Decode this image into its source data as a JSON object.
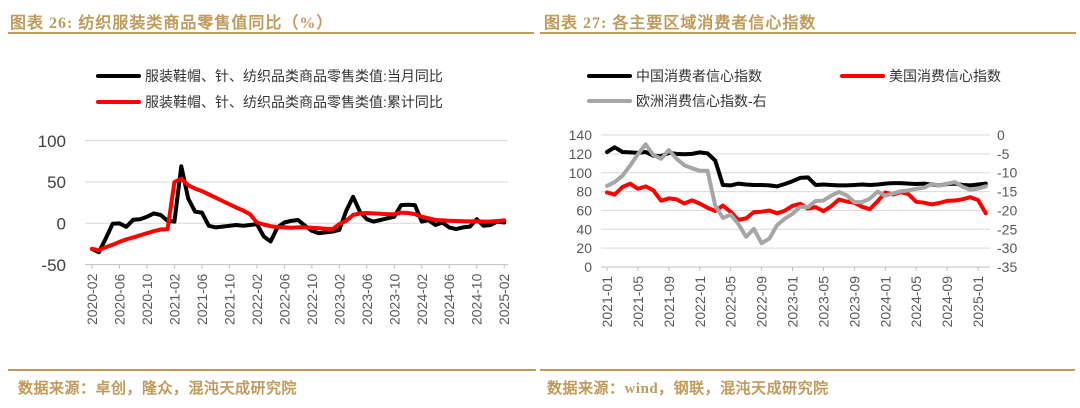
{
  "page": {
    "accent": "#BF9B5C",
    "background": "#FFFFFF"
  },
  "figures": [
    {
      "title": "图表 26: 纺织服装类商品零售值同比（%）",
      "source": "数据来源：卓创，隆众，混沌天成研究院",
      "legend": [
        {
          "label": "服装鞋帽、针、纺织品类商品零售类值:当月同比",
          "color": "#000000"
        },
        {
          "label": "服装鞋帽、针、纺织品类商品零售类值:累计同比",
          "color": "#FF0000"
        }
      ]
    },
    {
      "title": "图表 27: 各主要区域消费者信心指数",
      "source": "数据来源：wind，钢联，混沌天成研究院",
      "legend": [
        {
          "label": "中国消费者信心指数",
          "color": "#000000"
        },
        {
          "label": "美国消费信心指数",
          "color": "#FF0000"
        },
        {
          "label": "欧洲消费信心指数-右",
          "color": "#A6A6A6"
        }
      ]
    }
  ],
  "chart_data": [
    {
      "type": "line",
      "title": "纺织服装类商品零售值同比（%）",
      "xlabel": "",
      "ylabel": "",
      "grid": true,
      "legend_position": "top",
      "ylim_left": [
        -50,
        100
      ],
      "yticks_left": [
        100,
        50,
        0,
        -50
      ],
      "x_tick_every": 4,
      "x": [
        "2020-02",
        "2020-03",
        "2020-04",
        "2020-05",
        "2020-06",
        "2020-07",
        "2020-08",
        "2020-09",
        "2020-10",
        "2020-11",
        "2020-12",
        "2021-01",
        "2021-02",
        "2021-03",
        "2021-04",
        "2021-05",
        "2021-06",
        "2021-07",
        "2021-08",
        "2021-09",
        "2021-10",
        "2021-11",
        "2021-12",
        "2022-01",
        "2022-02",
        "2022-03",
        "2022-04",
        "2022-05",
        "2022-06",
        "2022-07",
        "2022-08",
        "2022-09",
        "2022-10",
        "2022-11",
        "2022-12",
        "2023-01",
        "2023-02",
        "2023-03",
        "2023-04",
        "2023-05",
        "2023-06",
        "2023-07",
        "2023-08",
        "2023-09",
        "2023-10",
        "2023-11",
        "2023-12",
        "2024-01",
        "2024-02",
        "2024-03",
        "2024-04",
        "2024-05",
        "2024-06",
        "2024-07",
        "2024-08",
        "2024-09",
        "2024-10",
        "2024-11",
        "2024-12",
        "2025-01",
        "2025-02"
      ],
      "series": [
        {
          "name": "服装鞋帽、针、纺织品类商品零售类值:当月同比",
          "axis": "left",
          "color": "#000000",
          "values": [
            -31,
            -35,
            -18.5,
            -0.6,
            -0.1,
            -4.2,
            4.2,
            5,
            8,
            12,
            10,
            3,
            2,
            69,
            30,
            14,
            13,
            -3,
            -5,
            -4,
            -3,
            -2,
            -3,
            -2,
            -1,
            -16,
            -22,
            -5,
            1,
            3,
            4,
            -3,
            -9,
            -12,
            -11,
            -10,
            -8,
            15,
            32,
            14,
            5,
            2,
            4,
            6,
            8,
            22,
            22.5,
            22,
            2,
            3.8,
            -2,
            1,
            -5,
            -7,
            -5,
            -4,
            5,
            -3,
            -2,
            2,
            1
          ]
        },
        {
          "name": "服装鞋帽、针、纺织品类商品零售类值:累计同比",
          "axis": "left",
          "color": "#FF0000",
          "values": [
            -31,
            -32.5,
            -29,
            -26,
            -22.5,
            -19.5,
            -17,
            -14.5,
            -12,
            -9.5,
            -7.5,
            -7,
            50,
            54,
            46,
            42,
            39,
            35,
            31,
            27,
            23,
            19,
            15.5,
            11,
            1,
            -1.5,
            -3.5,
            -4.5,
            -5,
            -5.5,
            -5,
            -5,
            -5.5,
            -6,
            -6.5,
            -7,
            -1,
            3,
            10,
            12,
            12.5,
            12,
            11.5,
            11,
            11,
            13,
            12.5,
            11,
            8,
            6,
            4,
            3.5,
            3,
            2.8,
            2.5,
            2.3,
            2.5,
            2,
            2.2,
            2.8,
            3.5
          ]
        }
      ]
    },
    {
      "type": "line",
      "title": "各主要区域消费者信心指数",
      "xlabel": "",
      "ylabel": "",
      "grid": true,
      "legend_position": "top",
      "ylim_left": [
        0,
        140
      ],
      "yticks_left": [
        140,
        120,
        100,
        80,
        60,
        40,
        20,
        0
      ],
      "ylim_right": [
        -35,
        0
      ],
      "yticks_right": [
        0,
        -5,
        -10,
        -15,
        -20,
        -25,
        -30,
        -35
      ],
      "x_tick_every": 4,
      "x": [
        "2021-01",
        "2021-02",
        "2021-03",
        "2021-04",
        "2021-05",
        "2021-06",
        "2021-07",
        "2021-08",
        "2021-09",
        "2021-10",
        "2021-11",
        "2021-12",
        "2022-01",
        "2022-02",
        "2022-03",
        "2022-04",
        "2022-05",
        "2022-06",
        "2022-07",
        "2022-08",
        "2022-09",
        "2022-10",
        "2022-11",
        "2022-12",
        "2023-01",
        "2023-02",
        "2023-03",
        "2023-04",
        "2023-05",
        "2023-06",
        "2023-07",
        "2023-08",
        "2023-09",
        "2023-10",
        "2023-11",
        "2023-12",
        "2024-01",
        "2024-02",
        "2024-03",
        "2024-04",
        "2024-05",
        "2024-06",
        "2024-07",
        "2024-08",
        "2024-09",
        "2024-10",
        "2024-11",
        "2024-12",
        "2025-01",
        "2025-02"
      ],
      "series": [
        {
          "name": "中国消费者信心指数",
          "axis": "left",
          "color": "#000000",
          "values": [
            122,
            127,
            122,
            121.5,
            121,
            122,
            118,
            117.5,
            121,
            120,
            119.5,
            120,
            121.5,
            120.5,
            113,
            87,
            86.5,
            88.5,
            87.5,
            87,
            87,
            86.5,
            85.5,
            88,
            91,
            94.5,
            95,
            87,
            87.5,
            87,
            86.5,
            86.5,
            87,
            87.5,
            87,
            87.5,
            88.5,
            89,
            89,
            88.5,
            88,
            88.5,
            87.5,
            86.5,
            88,
            88.5,
            87,
            86.5,
            87.5,
            88.5
          ]
        },
        {
          "name": "美国消费信心指数",
          "axis": "left",
          "color": "#FF0000",
          "values": [
            79,
            76.8,
            84.9,
            88.3,
            82.9,
            85.5,
            81.2,
            70.3,
            72.8,
            71.7,
            67.4,
            70.6,
            67.2,
            62.8,
            59.4,
            65.2,
            58.4,
            50,
            51.5,
            58.2,
            58.6,
            59.9,
            56.8,
            59.7,
            64.9,
            67,
            62,
            63.5,
            59.2,
            64.4,
            71.6,
            69.5,
            68.1,
            63.8,
            61.3,
            69.7,
            79,
            76.9,
            79.4,
            77.2,
            69.1,
            68.2,
            66.4,
            67.9,
            70.1,
            70.5,
            71.8,
            74,
            71.1,
            57
          ]
        },
        {
          "name": "欧洲消费信心指数-右",
          "axis": "right",
          "color": "#A6A6A6",
          "values": [
            -13.5,
            -12.5,
            -10.8,
            -8.1,
            -5.1,
            -2.5,
            -5.3,
            -6.3,
            -4,
            -6.3,
            -8,
            -8.8,
            -9.5,
            -9.5,
            -18.7,
            -22,
            -21.1,
            -23.6,
            -27,
            -24.9,
            -28.7,
            -27.5,
            -23.9,
            -22.2,
            -20.9,
            -19,
            -19.1,
            -17.5,
            -17.4,
            -16.1,
            -15.1,
            -16,
            -17.8,
            -17.8,
            -16.9,
            -15,
            -16.1,
            -15.5,
            -14.9,
            -14.7,
            -14.3,
            -14,
            -13,
            -13.4,
            -12.9,
            -12.5,
            -13.7,
            -14.5,
            -14.2,
            -13.6
          ]
        }
      ]
    }
  ]
}
